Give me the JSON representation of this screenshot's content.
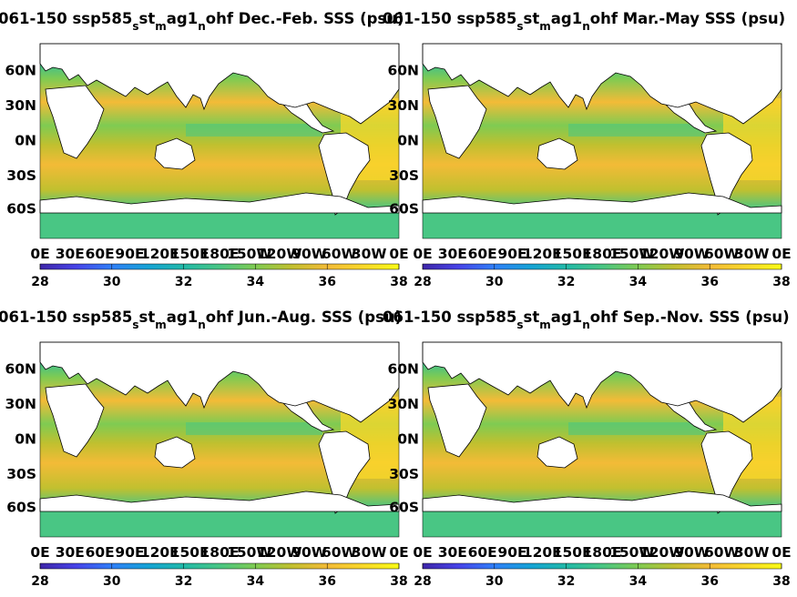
{
  "colormap": [
    "#3e26a8",
    "#4743e8",
    "#2f7ff8",
    "#15a3d6",
    "#21b9a8",
    "#49c684",
    "#7fcb52",
    "#c1c02f",
    "#f3bb37",
    "#f9d829",
    "#f9fb15"
  ],
  "land_color": "#ffffff",
  "chart_data": [
    {
      "type": "heatmap",
      "title": "061-150 ssp585_st_mag1_nohf Dec.-Feb. SSS (psu)",
      "title_parts": {
        "pre": "061-150 ssp585",
        "sub1": "s",
        "mid1": "st",
        "sub2": "m",
        "mid2": "ag1",
        "sub3": "n",
        "post": "ohf Dec.-Feb. SSS (psu)"
      },
      "x_ticklabels": [
        "0E",
        "30E",
        "60E",
        "90E",
        "120E",
        "150E",
        "180E",
        "150W",
        "120W",
        "90W",
        "60W",
        "30W",
        "0E"
      ],
      "y_ticklabels": [
        "60N",
        "30N",
        "0N",
        "30S",
        "60S"
      ],
      "colorbar": {
        "min": 28,
        "max": 38,
        "ticks": [
          "28",
          "30",
          "32",
          "34",
          "36",
          "38"
        ]
      }
    },
    {
      "type": "heatmap",
      "title": "061-150 ssp585_st_mag1_nohf Mar.-May SSS (psu)",
      "title_parts": {
        "pre": "061-150 ssp585",
        "sub1": "s",
        "mid1": "st",
        "sub2": "m",
        "mid2": "ag1",
        "sub3": "n",
        "post": "ohf Mar.-May SSS (psu)"
      },
      "x_ticklabels": [
        "0E",
        "30E",
        "60E",
        "90E",
        "120E",
        "150E",
        "180E",
        "150W",
        "120W",
        "90W",
        "60W",
        "30W",
        "0E"
      ],
      "y_ticklabels": [
        "60N",
        "30N",
        "0N",
        "30S",
        "60S"
      ],
      "colorbar": {
        "min": 28,
        "max": 38,
        "ticks": [
          "28",
          "30",
          "32",
          "34",
          "36",
          "38"
        ]
      }
    },
    {
      "type": "heatmap",
      "title": "061-150 ssp585_st_mag1_nohf Jun.-Aug. SSS (psu)",
      "title_parts": {
        "pre": "061-150 ssp585",
        "sub1": "s",
        "mid1": "st",
        "sub2": "m",
        "mid2": "ag1",
        "sub3": "n",
        "post": "ohf Jun.-Aug. SSS (psu)"
      },
      "x_ticklabels": [
        "0E",
        "30E",
        "60E",
        "90E",
        "120E",
        "150E",
        "180E",
        "150W",
        "120W",
        "90W",
        "60W",
        "30W",
        "0E"
      ],
      "y_ticklabels": [
        "60N",
        "30N",
        "0N",
        "30S",
        "60S"
      ],
      "colorbar": {
        "min": 28,
        "max": 38,
        "ticks": [
          "28",
          "30",
          "32",
          "34",
          "36",
          "38"
        ]
      }
    },
    {
      "type": "heatmap",
      "title": "061-150 ssp585_st_mag1_nohf Sep.-Nov. SSS (psu)",
      "title_parts": {
        "pre": "061-150 ssp585",
        "sub1": "s",
        "mid1": "st",
        "sub2": "m",
        "mid2": "ag1",
        "sub3": "n",
        "post": "ohf Sep.-Nov. SSS (psu)"
      },
      "x_ticklabels": [
        "0E",
        "30E",
        "60E",
        "90E",
        "120E",
        "150E",
        "180E",
        "150W",
        "120W",
        "90W",
        "60W",
        "30W",
        "0E"
      ],
      "y_ticklabels": [
        "60N",
        "30N",
        "0N",
        "30S",
        "60S"
      ],
      "colorbar": {
        "min": 28,
        "max": 38,
        "ticks": [
          "28",
          "30",
          "32",
          "34",
          "36",
          "38"
        ]
      }
    }
  ]
}
